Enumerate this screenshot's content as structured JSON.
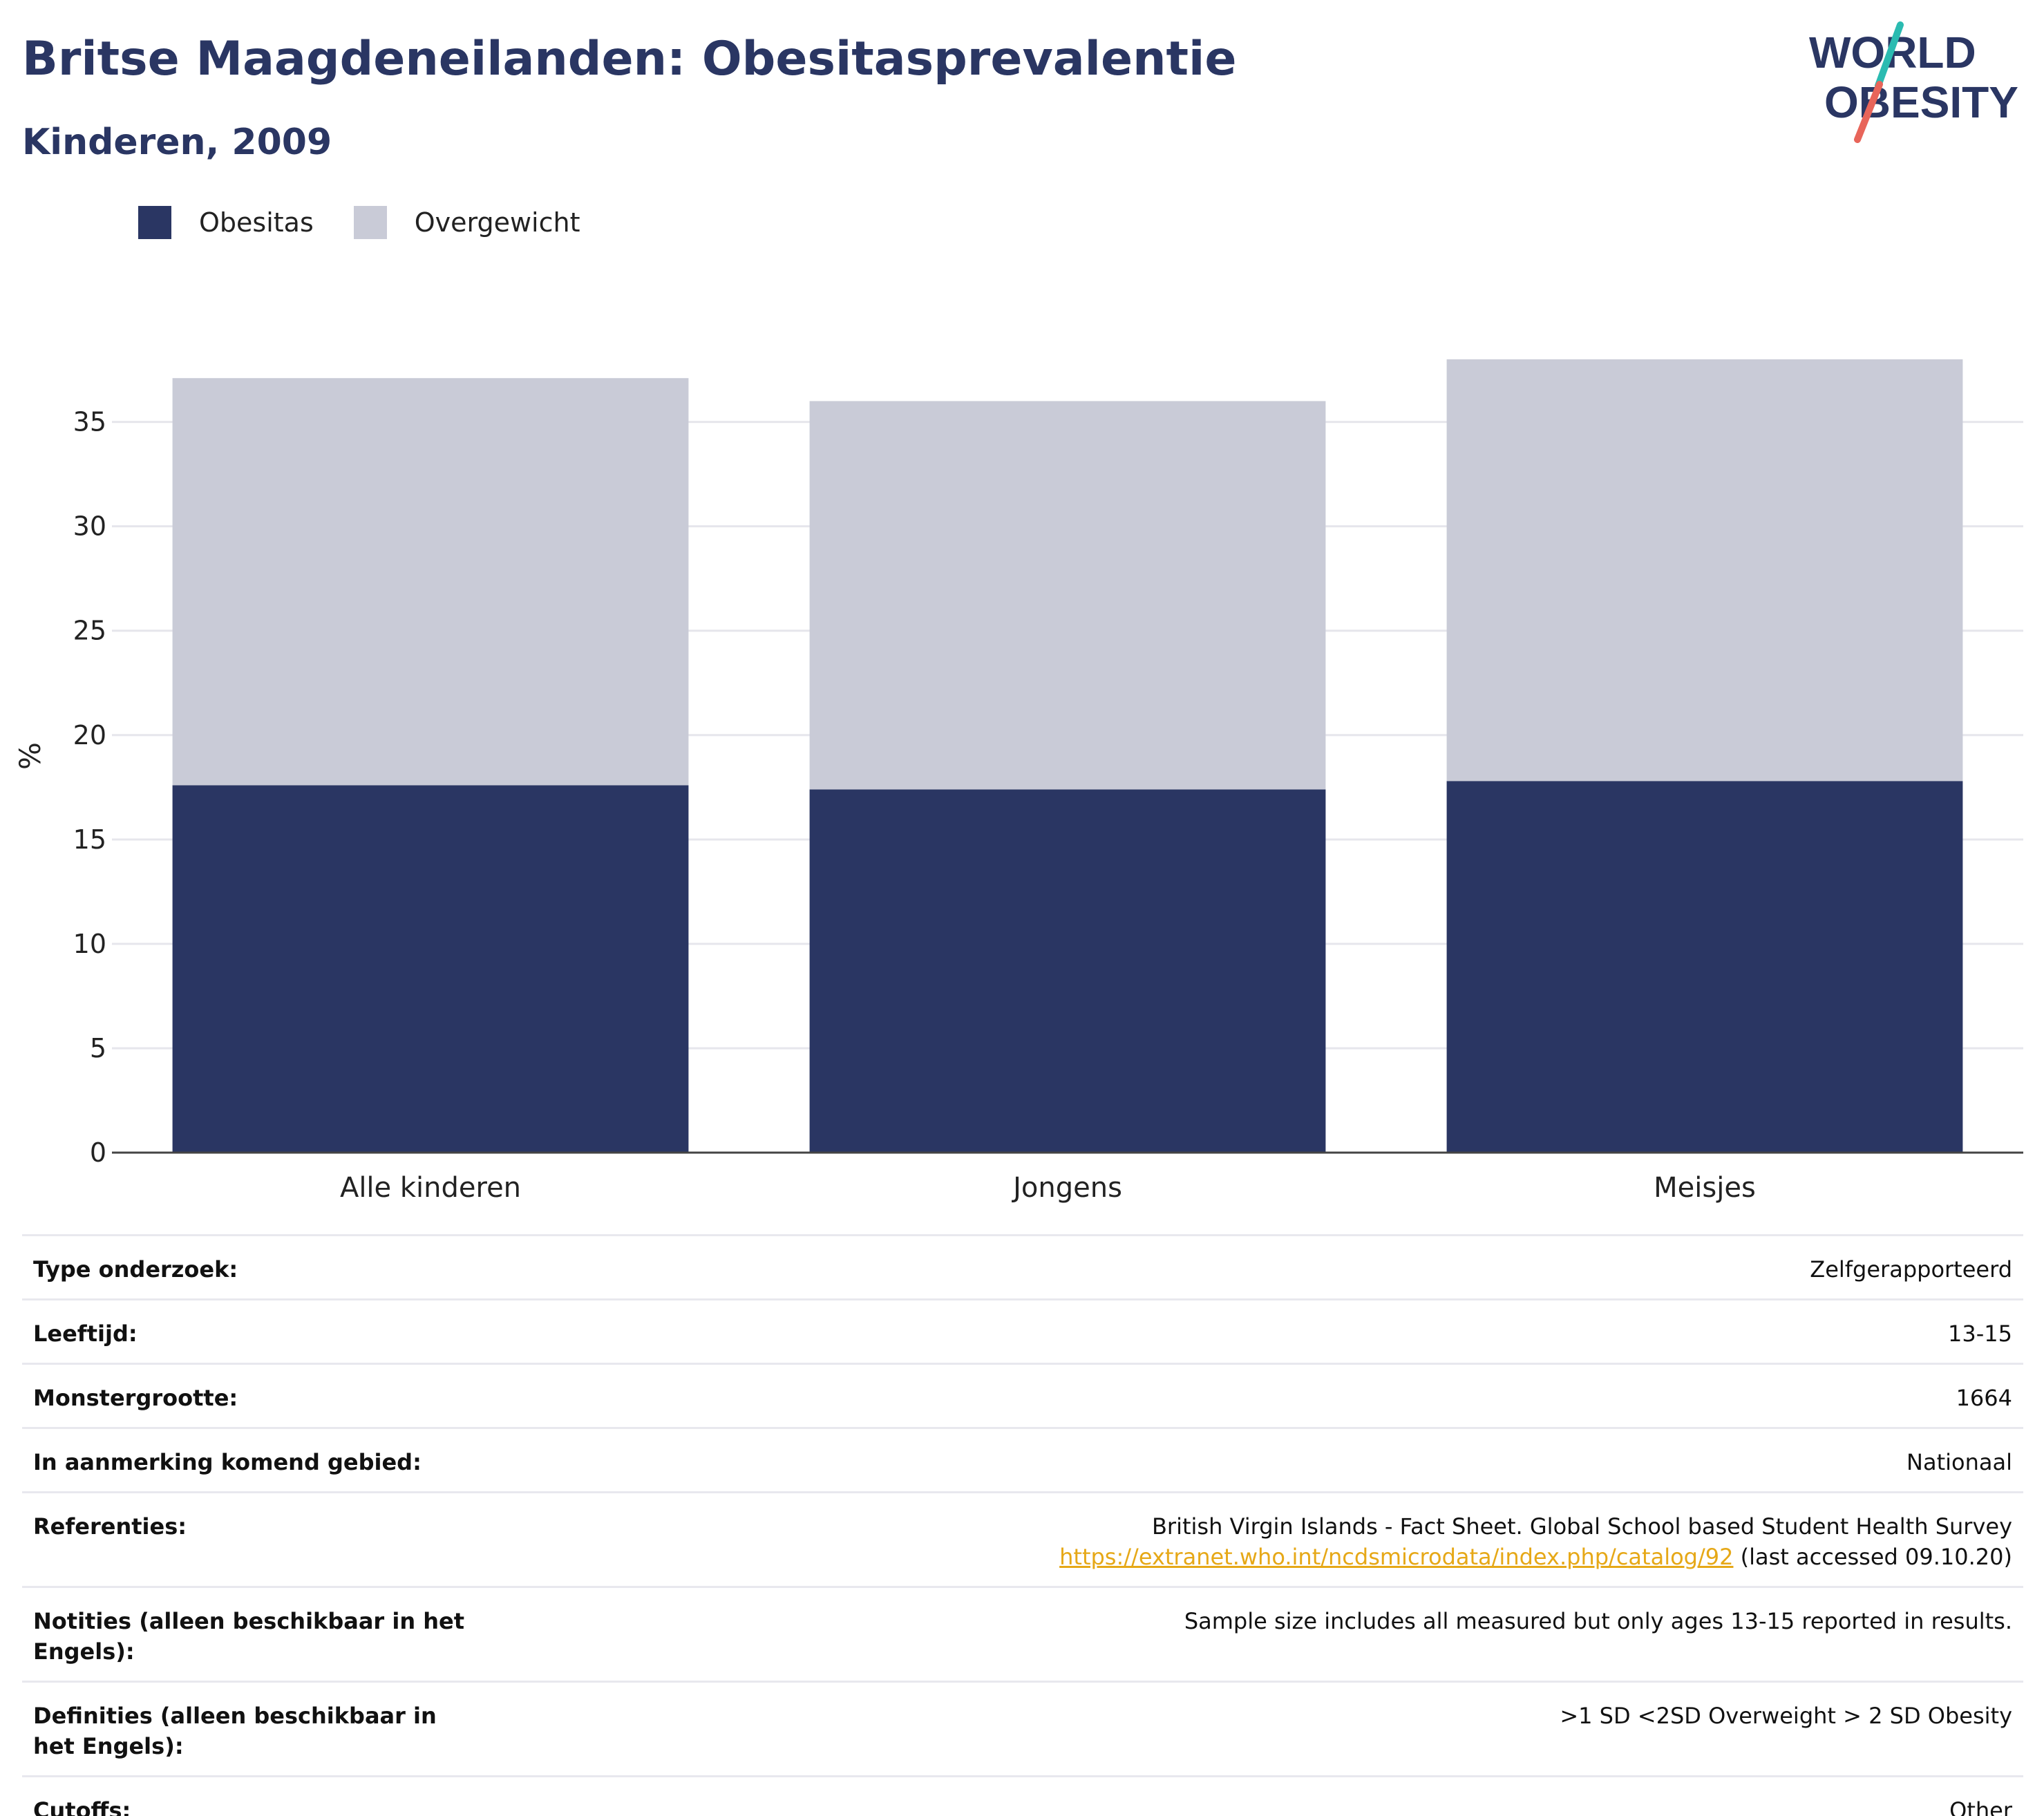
{
  "header": {
    "title": "Britse Maagdeneilanden: Obesitasprevalentie",
    "subtitle": "Kinderen, 2009"
  },
  "logo": {
    "line1": "WORLD",
    "line2": "OBESITY",
    "accent_colors": [
      "#2bbbb1",
      "#e8655a"
    ],
    "text_color": "#2a3663"
  },
  "colors": {
    "obesity": "#2a3663",
    "overweight": "#c9cbd7",
    "link": "#e6a817"
  },
  "legend": {
    "items": [
      {
        "label": "Obesitas",
        "color": "#2a3663"
      },
      {
        "label": "Overgewicht",
        "color": "#c9cbd7"
      }
    ]
  },
  "chart_data": {
    "type": "bar",
    "stacked": true,
    "categories": [
      "Alle kinderen",
      "Jongens",
      "Meisjes"
    ],
    "series": [
      {
        "name": "Obesitas",
        "values": [
          17.6,
          17.4,
          17.8
        ]
      },
      {
        "name": "Overgewicht",
        "values": [
          19.5,
          18.6,
          20.2
        ]
      }
    ],
    "ylabel": "%",
    "ylim": [
      0,
      38
    ],
    "yticks": [
      0,
      5,
      10,
      15,
      20,
      25,
      30,
      35
    ],
    "grid": true,
    "legend_position": "top-left"
  },
  "info": {
    "rows": [
      {
        "label": "Type onderzoek:",
        "value": "Zelfgerapporteerd"
      },
      {
        "label": "Leeftijd:",
        "value": "13-15"
      },
      {
        "label": "Monstergrootte:",
        "value": "1664"
      },
      {
        "label": "In aanmerking komend gebied:",
        "value": "Nationaal"
      }
    ],
    "references": {
      "label": "Referenties:",
      "line1": "British Virgin Islands - Fact Sheet. Global School based Student Health Survey",
      "link": "https://extranet.who.int/ncdsmicrodata/index.php/catalog/92",
      "accessed": " (last accessed 09.10.20)"
    },
    "rows2": [
      {
        "label": "Notities (alleen beschikbaar in het Engels):",
        "value": "Sample size includes all measured but only ages 13-15 reported in results."
      },
      {
        "label": "Definities (alleen beschikbaar in het Engels):",
        "value": ">1 SD <2SD Overweight > 2 SD Obesity"
      },
      {
        "label": "Cutoffs:",
        "value": "Other"
      }
    ]
  }
}
